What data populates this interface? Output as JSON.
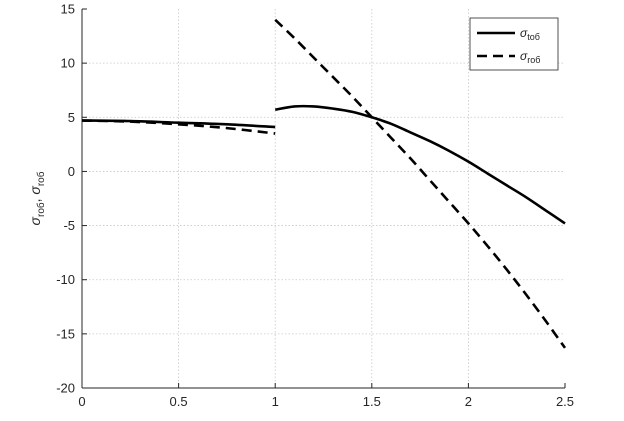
{
  "chart_data": {
    "type": "line",
    "title": "",
    "xlabel": "",
    "ylabel": {
      "parts": [
        {
          "text": "σ",
          "style": "italic"
        },
        {
          "text": "rоб",
          "style": "sub"
        },
        {
          "text": ", ",
          "style": "normal"
        },
        {
          "text": "σ",
          "style": "italic"
        },
        {
          "text": "rоб",
          "style": "sub"
        }
      ]
    },
    "xlim": [
      0,
      2.5
    ],
    "ylim": [
      -20,
      15
    ],
    "xticks": [
      0,
      0.5,
      1,
      1.5,
      2,
      2.5
    ],
    "xtick_labels": [
      "0",
      "0.5",
      "1",
      "1.5",
      "2",
      "2.5"
    ],
    "yticks": [
      -20,
      -15,
      -10,
      -5,
      0,
      5,
      10,
      15
    ],
    "ytick_labels": [
      "-20",
      "-15",
      "-10",
      "-5",
      "0",
      "5",
      "10",
      "15"
    ],
    "grid": true,
    "legend_position": "top-right",
    "series": [
      {
        "legend": {
          "symbol": "σ",
          "sub": "tоб"
        },
        "line_style": "solid",
        "color": "#000000",
        "segments": [
          {
            "x": [
              0,
              0.25,
              0.5,
              0.75,
              1.0
            ],
            "y": [
              4.7,
              4.65,
              4.5,
              4.35,
              4.1
            ]
          },
          {
            "x": [
              1.0,
              1.1,
              1.2,
              1.3,
              1.4,
              1.5,
              1.6,
              1.7,
              1.8,
              1.9,
              2.0,
              2.1,
              2.2,
              2.3,
              2.4,
              2.5
            ],
            "y": [
              5.7,
              6.0,
              6.0,
              5.8,
              5.5,
              5.0,
              4.4,
              3.6,
              2.8,
              1.9,
              0.9,
              -0.2,
              -1.3,
              -2.4,
              -3.6,
              -4.8
            ]
          }
        ]
      },
      {
        "legend": {
          "symbol": "σ",
          "sub": "rоб"
        },
        "line_style": "dashed",
        "color": "#000000",
        "segments": [
          {
            "x": [
              0,
              0.25,
              0.5,
              0.75,
              1.0
            ],
            "y": [
              4.7,
              4.6,
              4.35,
              4.0,
              3.5
            ]
          },
          {
            "x": [
              1.0,
              1.1,
              1.2,
              1.3,
              1.4,
              1.5,
              1.6,
              1.7,
              1.8,
              1.9,
              2.0,
              2.1,
              2.2,
              2.3,
              2.4,
              2.5
            ],
            "y": [
              14.0,
              12.3,
              10.5,
              8.7,
              6.9,
              5.0,
              3.1,
              1.2,
              -0.8,
              -2.8,
              -4.8,
              -6.9,
              -9.1,
              -11.4,
              -13.8,
              -16.3
            ]
          }
        ]
      }
    ]
  }
}
